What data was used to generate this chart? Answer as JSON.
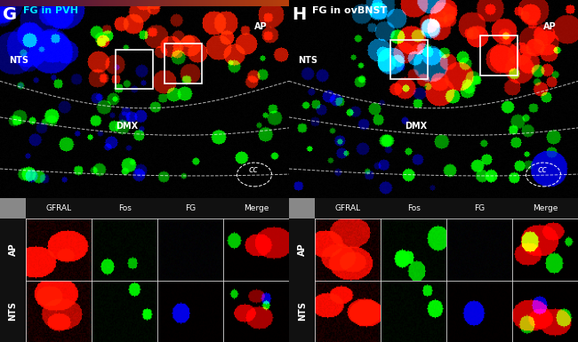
{
  "panel_G_label": "G",
  "panel_H_label": "H",
  "panel_G_title": "FG in PVH",
  "panel_H_title": "FG in ovBNST",
  "region_labels_G": [
    "NTS",
    "DMX",
    "AP",
    "cc"
  ],
  "region_labels_H": [
    "NTS",
    "DMX",
    "AP",
    "cc"
  ],
  "channel_labels": [
    "GFRAL",
    "Fos",
    "FG",
    "Merge"
  ],
  "row_labels": [
    "AP",
    "NTS"
  ],
  "bg_color": "#000000",
  "text_color": "#ffffff",
  "label_color_G": "#00ffff",
  "label_color_H": "#ffffff",
  "white_box_color": "#ffffff",
  "figure_bg": "#808080"
}
